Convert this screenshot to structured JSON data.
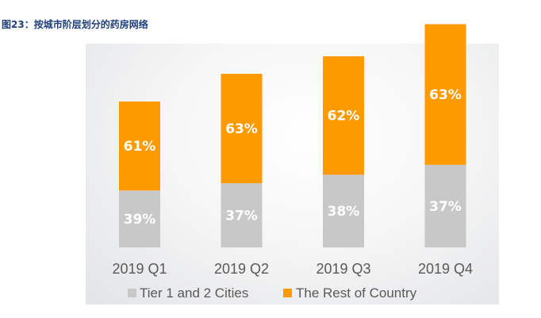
{
  "title": "图23：按城市阶层划分的药房网络",
  "colors": {
    "tier": "#c8c8c8",
    "rest": "#fd9a00",
    "title": "#1f3f7a",
    "text": "#595959"
  },
  "chart_data": {
    "type": "bar",
    "stacked": true,
    "categories": [
      "2019 Q1",
      "2019 Q2",
      "2019 Q3",
      "2019 Q4"
    ],
    "series": [
      {
        "name": "Tier 1 and 2 Cities",
        "values": [
          39,
          37,
          38,
          37
        ],
        "labels": [
          "39%",
          "37%",
          "38%",
          "37%"
        ]
      },
      {
        "name": "The Rest of Country",
        "values": [
          61,
          63,
          62,
          63
        ],
        "labels": [
          "61%",
          "63%",
          "62%",
          "63%"
        ]
      }
    ],
    "relative_totals": [
      100,
      119,
      131,
      153
    ],
    "legend_position": "bottom",
    "grid": false
  }
}
